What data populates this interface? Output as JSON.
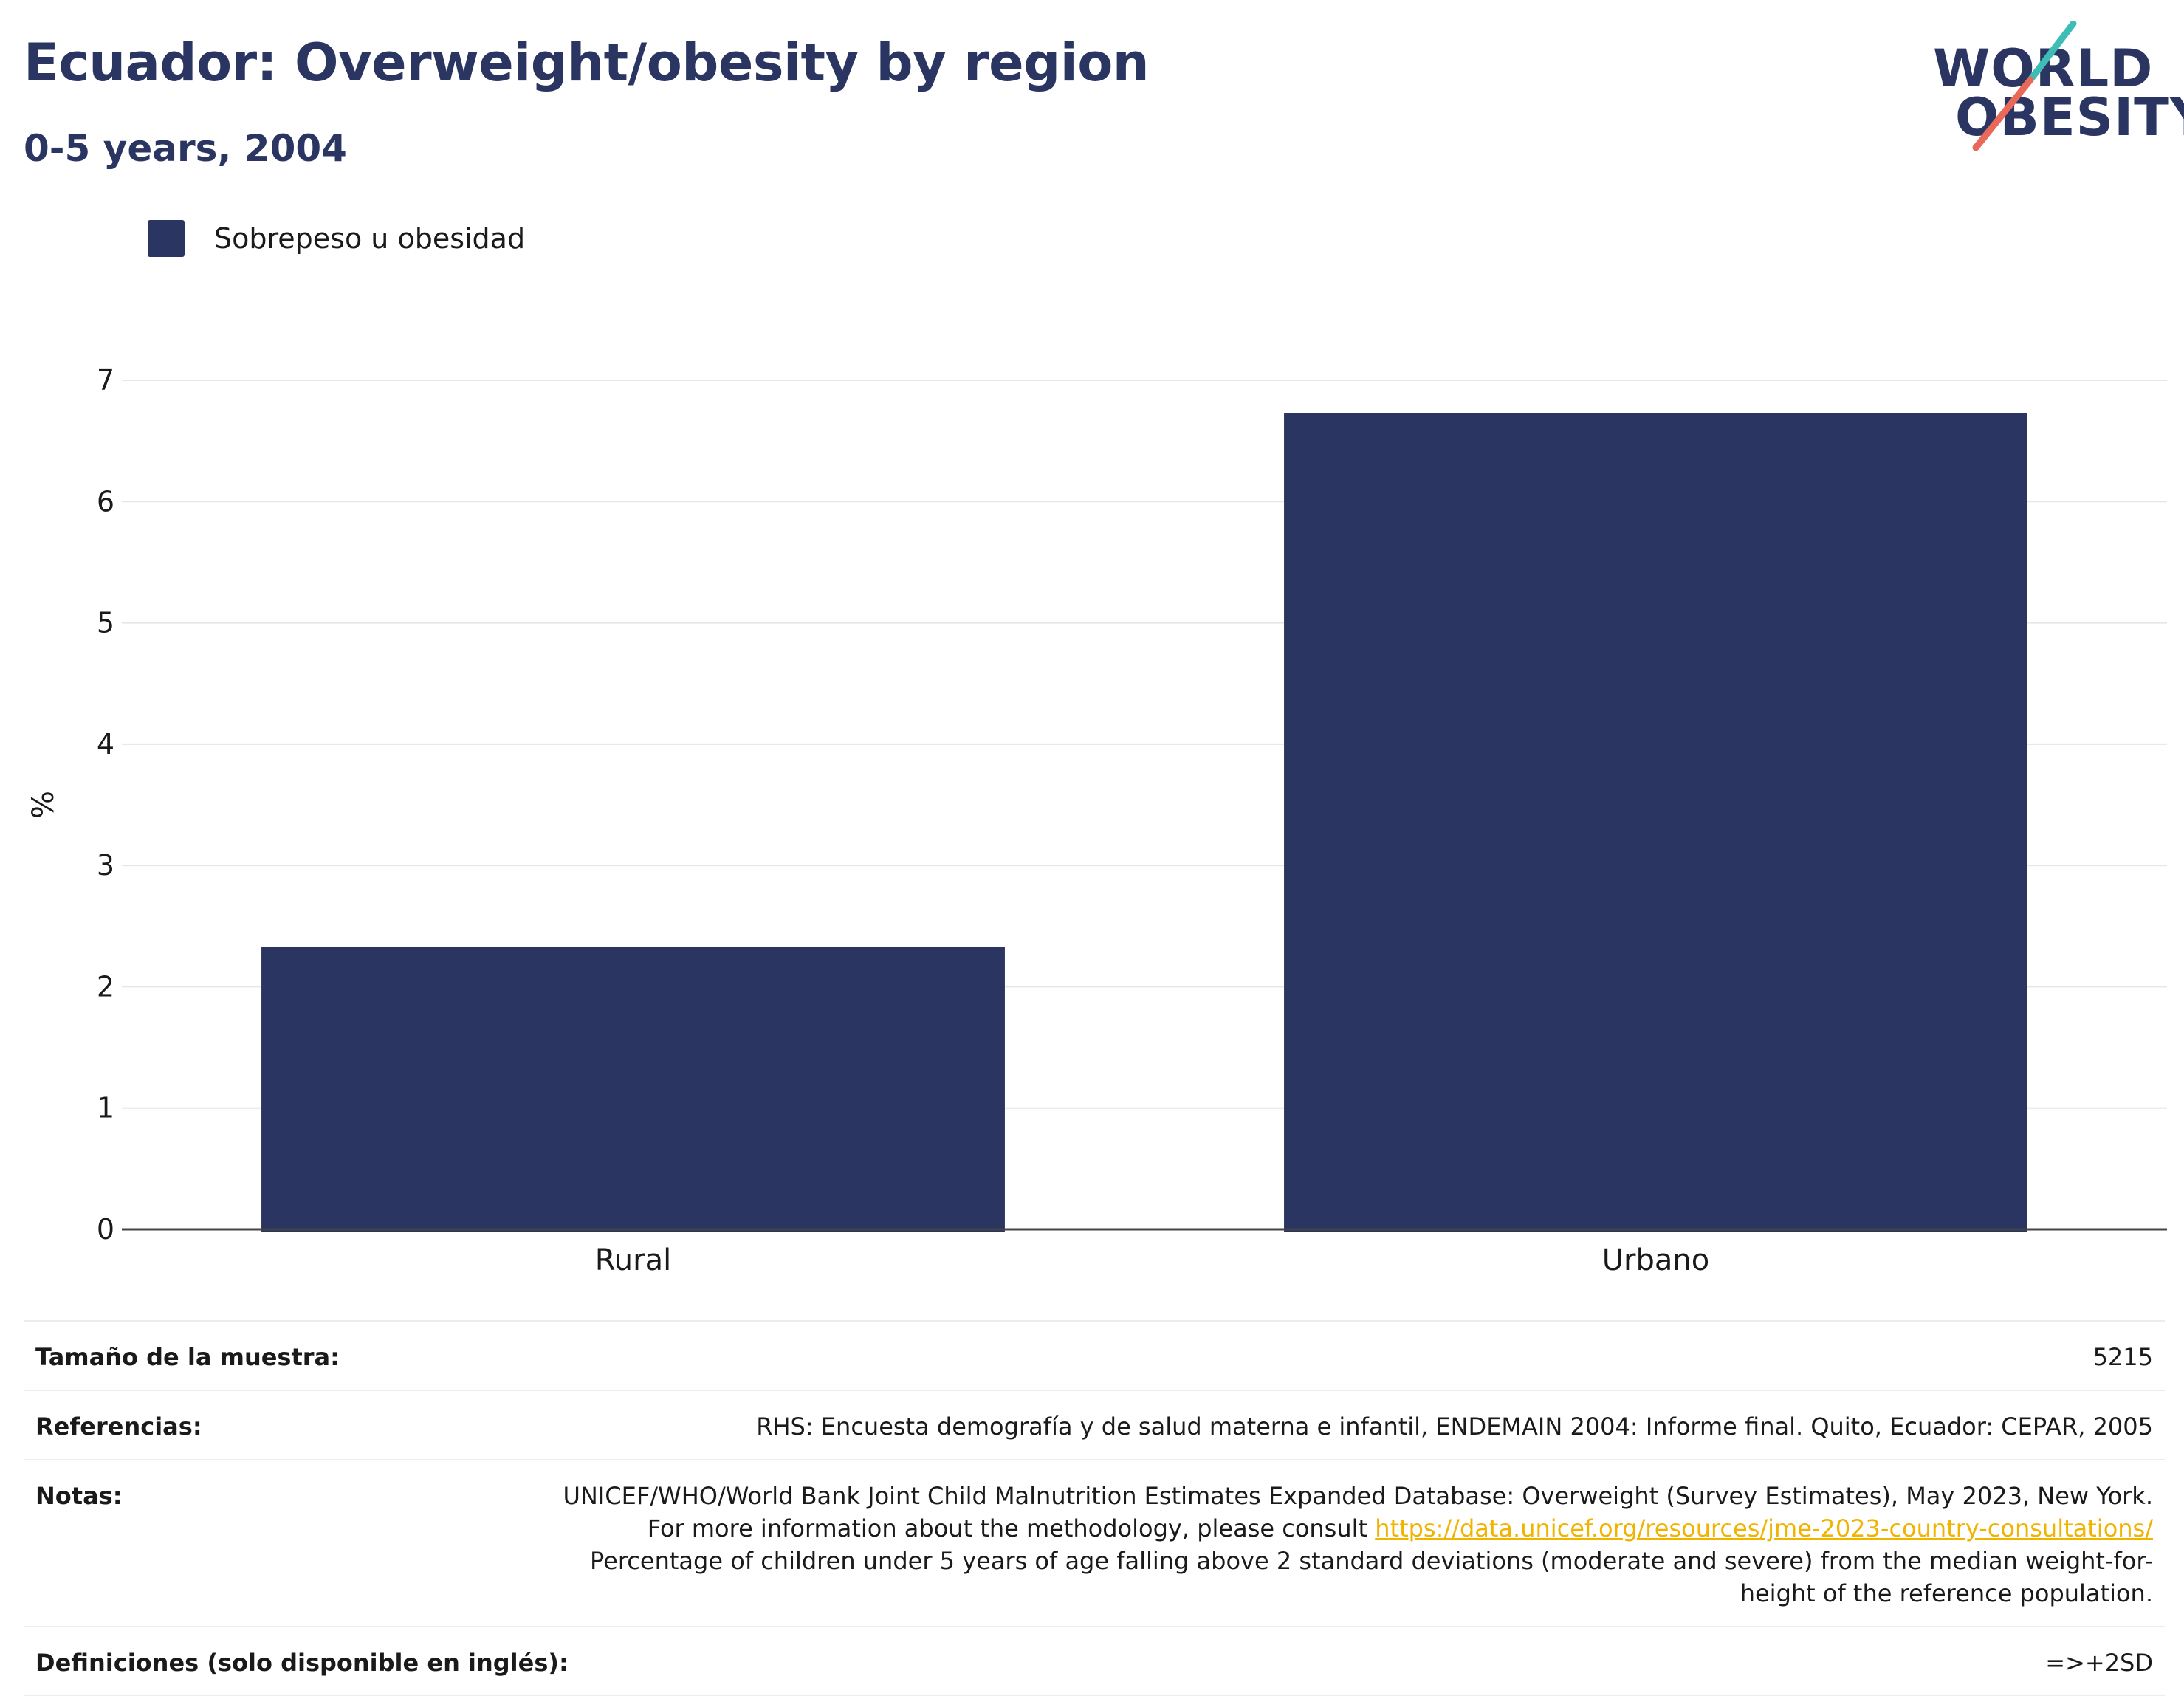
{
  "header": {
    "title": "Ecuador: Overweight/obesity by region",
    "subtitle": "0-5 years, 2004"
  },
  "logo": {
    "line1": "WORLD",
    "line2": "OBESITY",
    "accent_teal": "#3dbdb6",
    "accent_coral": "#e8685a"
  },
  "colors": {
    "bar": "#2a3561",
    "grid": "#e6e6e6",
    "axis": "#444444"
  },
  "chart_data": {
    "type": "bar",
    "categories": [
      "Rural",
      "Urbano"
    ],
    "series": [
      {
        "name": "Sobrepeso u obesidad",
        "values": [
          2.33,
          6.73
        ]
      }
    ],
    "xlabel": "",
    "ylabel": "%",
    "ylim": [
      0,
      7
    ],
    "yticks": [
      0,
      1,
      2,
      3,
      4,
      5,
      6,
      7
    ],
    "grid": true,
    "legend": "top-left"
  },
  "info": {
    "sample_label": "Tamaño de la muestra:",
    "sample_value": "5215",
    "references_label": "Referencias:",
    "references_value": "RHS: Encuesta demografía y de salud materna e infantil, ENDEMAIN 2004: Informe final. Quito, Ecuador: CEPAR, 2005",
    "notes_label": "Notas:",
    "notes_text_1": "UNICEF/WHO/World Bank Joint Child Malnutrition Estimates Expanded Database: Overweight (Survey Estimates), May 2023, New York. For more information about the methodology, please consult",
    "notes_link": "https://data.unicef.org/resources/jme-2023-country-consultations/",
    "notes_text_2": "Percentage of children under 5 years of age falling above 2 standard deviations (moderate and severe) from the median weight-for-height of the reference population.",
    "definitions_label": "Definiciones (solo disponible en inglés):",
    "definitions_value": "=>+2SD"
  }
}
